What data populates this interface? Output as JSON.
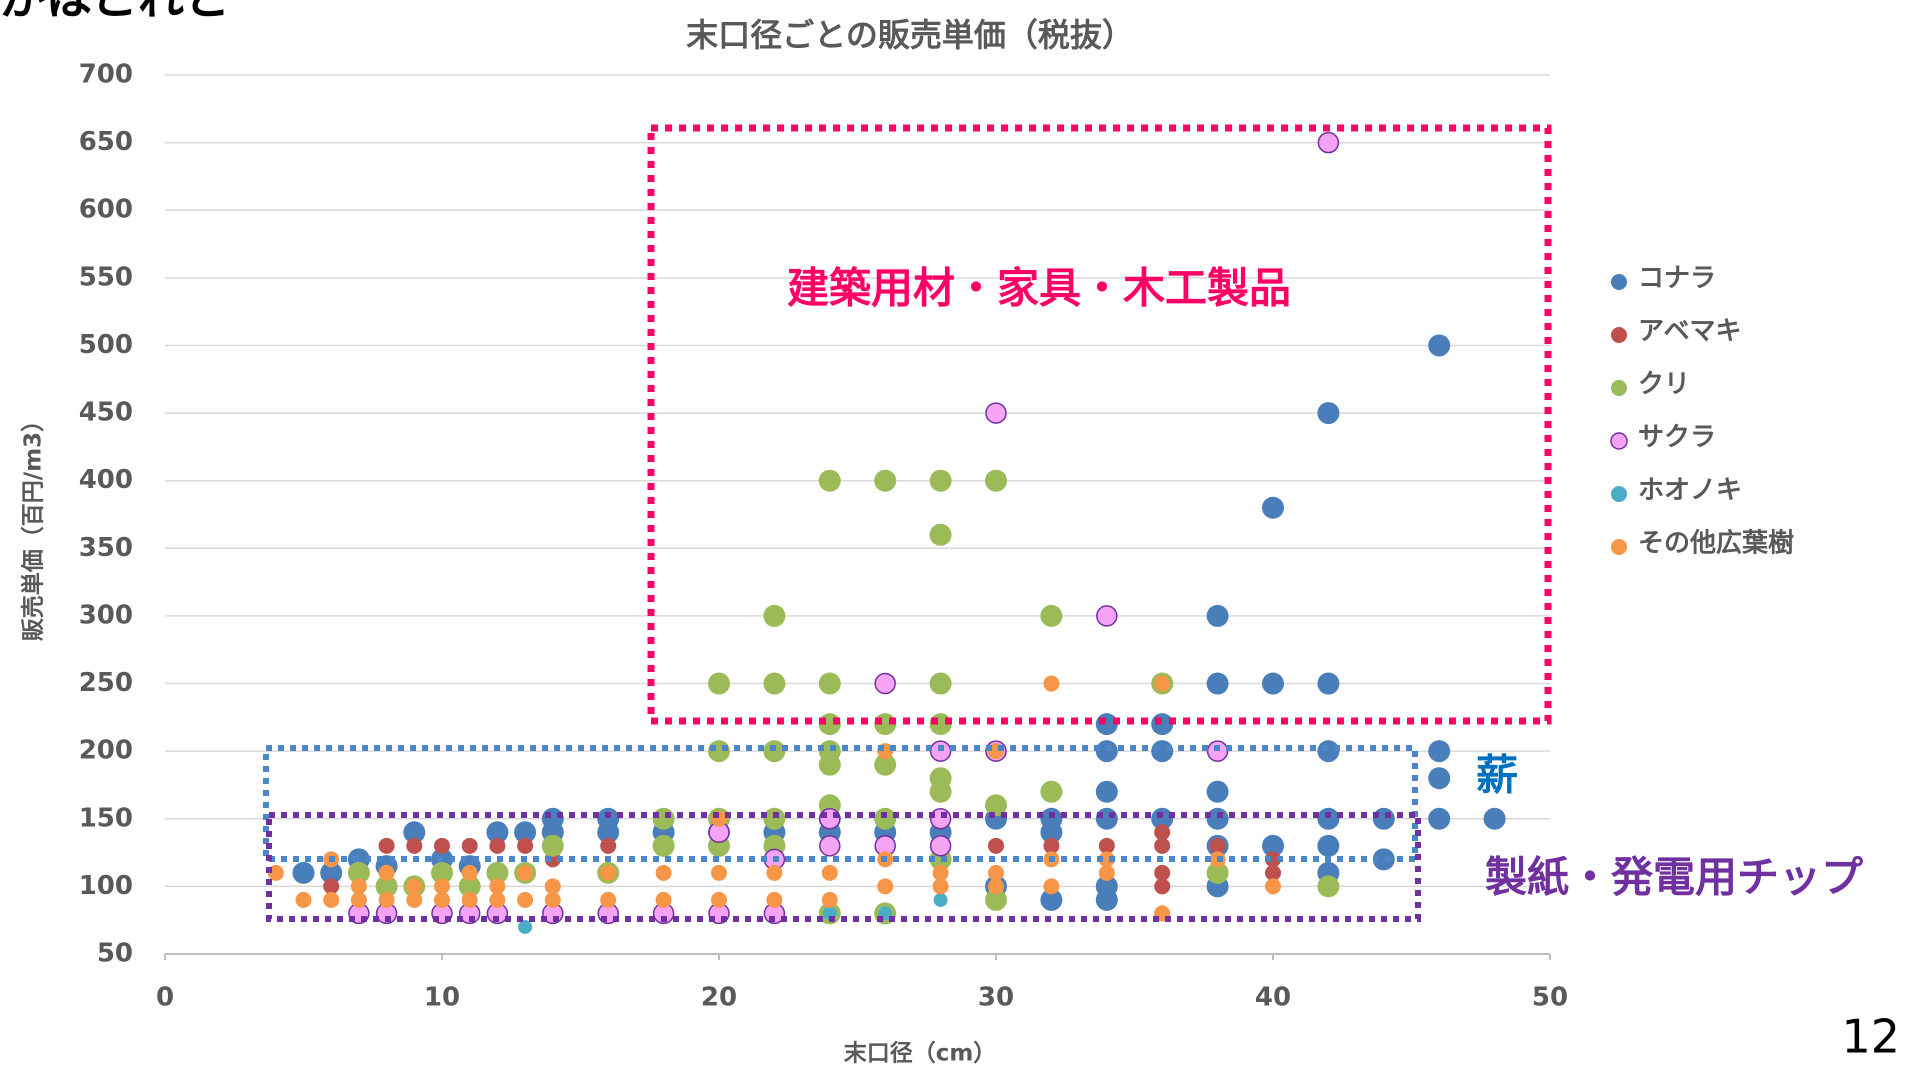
{
  "top_fragment": "がはこれと",
  "page_number": "12",
  "chart_data": {
    "type": "scatter",
    "title": "末口径ごとの販売単価（税抜）",
    "xlabel": "末口径（cm）",
    "ylabel": "販売単価（百円/m3）",
    "xlim": [
      0,
      50
    ],
    "xticks": [
      0,
      10,
      20,
      30,
      40,
      50
    ],
    "ylim": [
      50,
      700
    ],
    "yticks": [
      50,
      100,
      150,
      200,
      250,
      300,
      350,
      400,
      450,
      500,
      550,
      600,
      650,
      700
    ],
    "grid": true,
    "legend": "right",
    "annotations": [
      "建築用材・家具・木工製品",
      "薪",
      "製紙・発電用チップ"
    ],
    "series": [
      {
        "name": "コナラ",
        "color": "#4a7ebb",
        "x": [
          5,
          6,
          7,
          8,
          9,
          10,
          11,
          12,
          13,
          14,
          14,
          16,
          16,
          18,
          20,
          22,
          24,
          24,
          26,
          28,
          30,
          32,
          32,
          34,
          34,
          34,
          34,
          34,
          36,
          36,
          36,
          38,
          38,
          38,
          38,
          38,
          40,
          40,
          40,
          42,
          42,
          42,
          42,
          42,
          42,
          44,
          44,
          46,
          46,
          46,
          46,
          48,
          30,
          32,
          34,
          38
        ],
        "values": [
          110,
          110,
          120,
          115,
          140,
          120,
          115,
          140,
          140,
          150,
          140,
          150,
          140,
          140,
          140,
          140,
          150,
          140,
          140,
          140,
          150,
          150,
          140,
          220,
          200,
          170,
          150,
          90,
          220,
          200,
          150,
          300,
          250,
          170,
          150,
          130,
          380,
          250,
          130,
          450,
          250,
          200,
          150,
          130,
          110,
          150,
          120,
          500,
          200,
          180,
          150,
          150,
          100,
          90,
          100,
          100
        ]
      },
      {
        "name": "アベマキ",
        "color": "#c0504d",
        "x": [
          6,
          8,
          9,
          10,
          11,
          12,
          13,
          14,
          16,
          22,
          24,
          30,
          32,
          34,
          36,
          36,
          36,
          38,
          40,
          40,
          36
        ],
        "values": [
          100,
          130,
          130,
          130,
          130,
          130,
          130,
          120,
          130,
          120,
          130,
          130,
          130,
          130,
          130,
          110,
          100,
          130,
          120,
          110,
          140
        ]
      },
      {
        "name": "クリ",
        "color": "#9bbb59",
        "x": [
          7,
          8,
          9,
          10,
          11,
          12,
          13,
          14,
          16,
          18,
          18,
          20,
          20,
          20,
          20,
          22,
          22,
          22,
          22,
          22,
          24,
          24,
          24,
          24,
          24,
          24,
          24,
          26,
          26,
          26,
          26,
          26,
          28,
          28,
          28,
          28,
          28,
          28,
          28,
          30,
          30,
          30,
          32,
          32,
          36,
          38,
          42
        ],
        "values": [
          110,
          100,
          100,
          110,
          100,
          110,
          110,
          130,
          110,
          150,
          130,
          250,
          200,
          150,
          130,
          300,
          250,
          200,
          150,
          130,
          400,
          250,
          220,
          200,
          190,
          160,
          80,
          400,
          220,
          190,
          150,
          80,
          400,
          360,
          250,
          220,
          180,
          170,
          120,
          400,
          160,
          90,
          300,
          170,
          250,
          110,
          100
        ]
      },
      {
        "name": "サクラ",
        "color": "#f5a3f5",
        "x": [
          7,
          8,
          10,
          11,
          12,
          14,
          16,
          18,
          20,
          20,
          22,
          22,
          24,
          24,
          26,
          26,
          28,
          28,
          28,
          30,
          30,
          34,
          38,
          42
        ],
        "values": [
          80,
          80,
          80,
          80,
          80,
          80,
          80,
          80,
          80,
          140,
          80,
          120,
          150,
          130,
          250,
          130,
          200,
          150,
          130,
          450,
          200,
          300,
          200,
          650
        ]
      },
      {
        "name": "ホオノキ",
        "color": "#4bacc6",
        "x": [
          13,
          24,
          26,
          28,
          30
        ],
        "values": [
          70,
          80,
          80,
          90,
          100
        ]
      },
      {
        "name": "その他広葉樹",
        "color": "#f79646",
        "x": [
          4,
          5,
          6,
          6,
          7,
          7,
          8,
          8,
          9,
          9,
          10,
          10,
          11,
          11,
          12,
          12,
          13,
          13,
          14,
          14,
          16,
          16,
          18,
          18,
          20,
          20,
          20,
          22,
          22,
          24,
          24,
          26,
          26,
          26,
          28,
          28,
          30,
          30,
          30,
          32,
          32,
          32,
          34,
          34,
          36,
          36,
          38,
          40
        ],
        "values": [
          110,
          90,
          90,
          120,
          100,
          90,
          110,
          90,
          100,
          90,
          100,
          90,
          110,
          90,
          100,
          90,
          110,
          90,
          100,
          90,
          110,
          90,
          110,
          90,
          150,
          110,
          90,
          110,
          90,
          110,
          90,
          200,
          120,
          100,
          110,
          100,
          200,
          110,
          100,
          250,
          120,
          100,
          120,
          110,
          250,
          80,
          120,
          100
        ]
      }
    ]
  }
}
